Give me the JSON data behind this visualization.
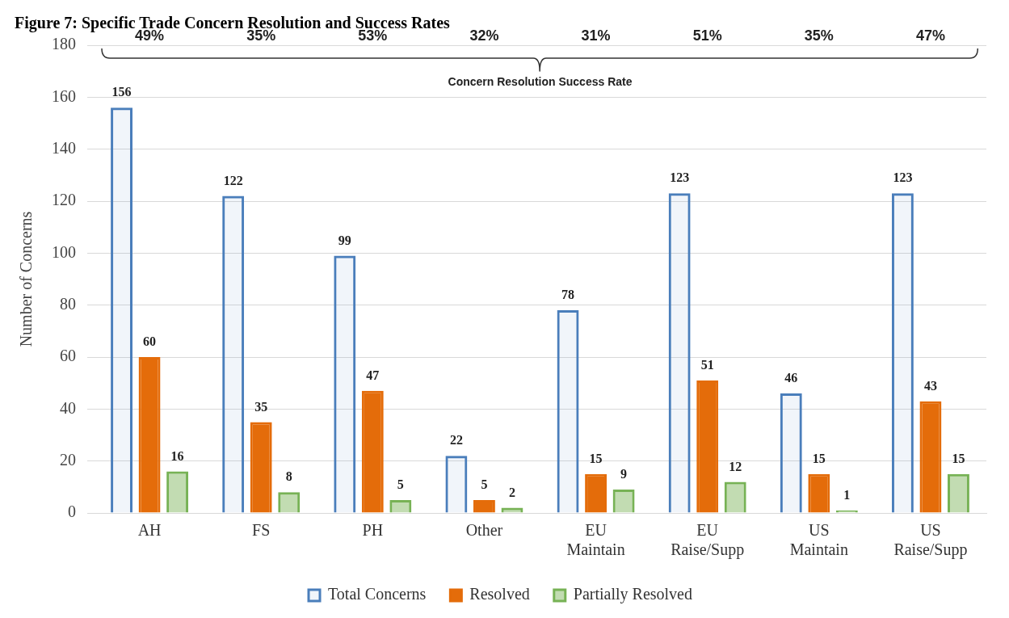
{
  "chart_data": {
    "type": "bar",
    "title": "Figure 7: Specific Trade Concern Resolution and Success Rates",
    "ylabel": "Number of Concerns",
    "categories": [
      "AH",
      "FS",
      "PH",
      "Other",
      "EU Maintain",
      "EU Raise/Supp",
      "US Maintain",
      "US Raise/Supp"
    ],
    "series": [
      {
        "name": "Total Concerns",
        "color": "#4a7ebb",
        "values": [
          156,
          122,
          99,
          22,
          78,
          123,
          46,
          123
        ]
      },
      {
        "name": "Resolved",
        "color": "#e46c0a",
        "values": [
          60,
          35,
          47,
          5,
          15,
          51,
          15,
          43
        ]
      },
      {
        "name": "Partially Resolved",
        "color": "#77b255",
        "values": [
          16,
          8,
          5,
          2,
          9,
          12,
          1,
          15
        ]
      }
    ],
    "ylim": [
      0,
      180
    ],
    "yticks": [
      0,
      20,
      40,
      60,
      80,
      100,
      120,
      140,
      160,
      180
    ],
    "grid": "y",
    "legend": "bottom",
    "data_labels": true,
    "annotations": [
      "49%",
      "35%",
      "53%",
      "32%",
      "31%",
      "51%",
      "35%",
      "47%",
      "Concern Resolution Success Rate"
    ]
  }
}
